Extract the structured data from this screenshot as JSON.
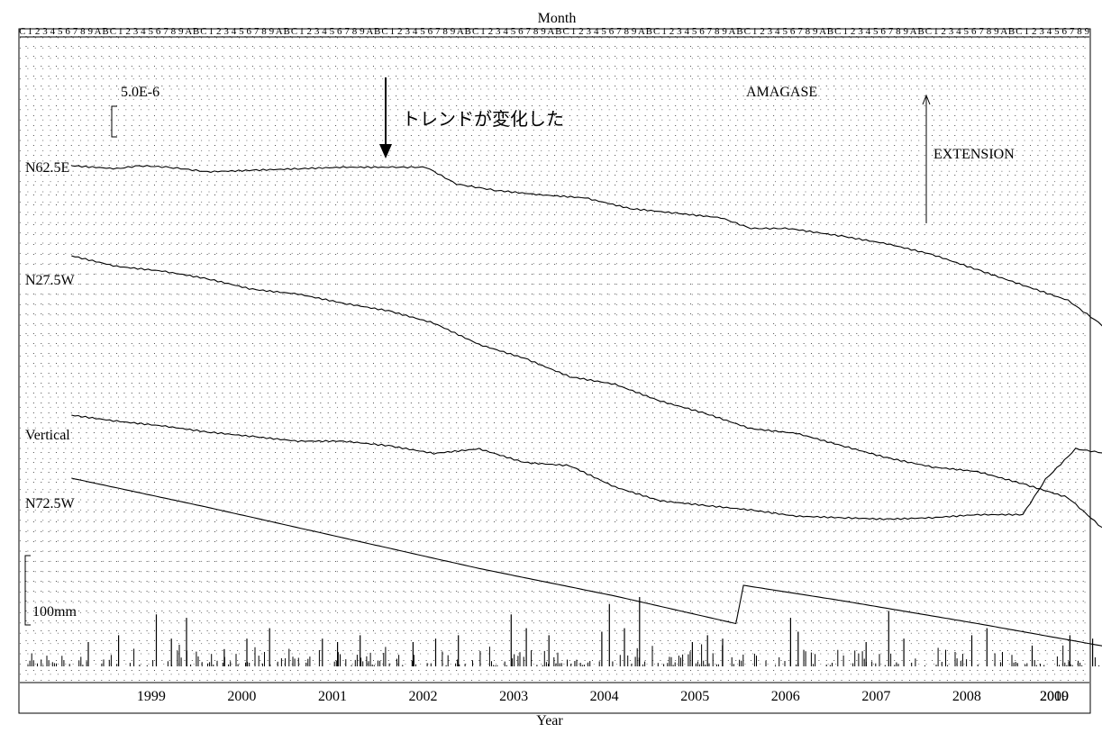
{
  "chart_data": {
    "type": "line",
    "station": "AMAGASE",
    "top_axis_label": "Month",
    "bottom_axis_label": "Year",
    "month_tick_labels": [
      "1",
      "2",
      "3",
      "4",
      "5",
      "6",
      "7",
      "8",
      "9",
      "A",
      "B",
      "C"
    ],
    "year_labels": [
      "1999",
      "2000",
      "2001",
      "2002",
      "2003",
      "2004",
      "2005",
      "2006",
      "2007",
      "2008",
      "2009",
      "2010"
    ],
    "strain_scale_label": "5.0E-6",
    "strain_scale_value": 5e-06,
    "rain_scale_label": "100mm",
    "rain_scale_value_mm": 100,
    "extension_label": "EXTENSION",
    "grid": true,
    "annotation": {
      "text": "トレンドが変化した",
      "date": "2002-06"
    },
    "x_range": [
      "1998-07",
      "2009-12"
    ],
    "series": [
      {
        "name": "N62.5E",
        "points": [
          [
            "1998-07",
            0.0
          ],
          [
            "1999-01",
            -0.1
          ],
          [
            "1999-04",
            0.0
          ],
          [
            "1999-08",
            -0.05
          ],
          [
            "2000-01",
            -0.2
          ],
          [
            "2000-07",
            -0.15
          ],
          [
            "2001-01",
            -0.1
          ],
          [
            "2001-07",
            -0.05
          ],
          [
            "2002-01",
            -0.05
          ],
          [
            "2002-06",
            -0.05
          ],
          [
            "2002-10",
            -0.6
          ],
          [
            "2003-03",
            -0.8
          ],
          [
            "2003-09",
            -0.95
          ],
          [
            "2004-03",
            -1.05
          ],
          [
            "2004-09",
            -1.4
          ],
          [
            "2005-03",
            -1.55
          ],
          [
            "2005-09",
            -1.7
          ],
          [
            "2006-01",
            -2.05
          ],
          [
            "2006-06",
            -2.05
          ],
          [
            "2007-01",
            -2.3
          ],
          [
            "2007-07",
            -2.55
          ],
          [
            "2008-01",
            -2.9
          ],
          [
            "2008-07",
            -3.4
          ],
          [
            "2009-01",
            -3.9
          ],
          [
            "2009-07",
            -4.4
          ],
          [
            "2009-12",
            -5.3
          ]
        ]
      },
      {
        "name": "N27.5W",
        "points": [
          [
            "1998-07",
            0.0
          ],
          [
            "1999-01",
            -0.35
          ],
          [
            "1999-07",
            -0.5
          ],
          [
            "2000-01",
            -0.75
          ],
          [
            "2000-07",
            -1.1
          ],
          [
            "2001-01",
            -1.25
          ],
          [
            "2001-07",
            -1.55
          ],
          [
            "2002-01",
            -1.8
          ],
          [
            "2002-07",
            -2.2
          ],
          [
            "2003-01",
            -2.9
          ],
          [
            "2003-07",
            -3.35
          ],
          [
            "2004-01",
            -3.95
          ],
          [
            "2004-07",
            -4.2
          ],
          [
            "2005-01",
            -4.75
          ],
          [
            "2005-07",
            -5.15
          ],
          [
            "2006-01",
            -5.65
          ],
          [
            "2006-07",
            -5.8
          ],
          [
            "2007-01",
            -6.2
          ],
          [
            "2007-07",
            -6.6
          ],
          [
            "2008-01",
            -6.9
          ],
          [
            "2008-07",
            -7.05
          ],
          [
            "2009-01",
            -7.45
          ],
          [
            "2009-07",
            -7.9
          ],
          [
            "2009-12",
            -9.0
          ]
        ]
      },
      {
        "name": "Vertical",
        "points": [
          [
            "1998-07",
            0.0
          ],
          [
            "1999-01",
            -0.2
          ],
          [
            "1999-07",
            -0.35
          ],
          [
            "2000-01",
            -0.55
          ],
          [
            "2000-07",
            -0.7
          ],
          [
            "2001-01",
            -0.85
          ],
          [
            "2001-07",
            -0.85
          ],
          [
            "2002-01",
            -1.0
          ],
          [
            "2002-07",
            -1.25
          ],
          [
            "2003-01",
            -1.1
          ],
          [
            "2003-07",
            -1.55
          ],
          [
            "2004-01",
            -1.65
          ],
          [
            "2004-07",
            -2.35
          ],
          [
            "2005-01",
            -2.8
          ],
          [
            "2005-07",
            -2.95
          ],
          [
            "2006-01",
            -3.1
          ],
          [
            "2006-07",
            -3.3
          ],
          [
            "2007-01",
            -3.35
          ],
          [
            "2007-07",
            -3.4
          ],
          [
            "2008-01",
            -3.35
          ],
          [
            "2008-07",
            -3.25
          ],
          [
            "2009-01",
            -3.25
          ],
          [
            "2009-04",
            -2.1
          ],
          [
            "2009-08",
            -1.1
          ],
          [
            "2009-12",
            -1.25
          ]
        ]
      },
      {
        "name": "N72.5W",
        "points": [
          [
            "1998-07",
            0.0
          ],
          [
            "2000-01",
            -0.95
          ],
          [
            "2001-07",
            -1.95
          ],
          [
            "2003-01",
            -2.95
          ],
          [
            "2004-07",
            -3.85
          ],
          [
            "2005-11",
            -4.75
          ],
          [
            "2005-12",
            -3.5
          ],
          [
            "2007-01",
            -4.0
          ],
          [
            "2008-07",
            -4.75
          ],
          [
            "2009-12",
            -5.5
          ]
        ]
      }
    ],
    "rain_series": {
      "name": "precipitation",
      "peaks": [
        [
          "1998-09",
          35
        ],
        [
          "1999-01",
          45
        ],
        [
          "1999-06",
          75
        ],
        [
          "1999-08",
          40
        ],
        [
          "1999-10",
          70
        ],
        [
          "2000-03",
          25
        ],
        [
          "2000-06",
          40
        ],
        [
          "2000-09",
          55
        ],
        [
          "2001-04",
          40
        ],
        [
          "2001-06",
          35
        ],
        [
          "2001-09",
          45
        ],
        [
          "2002-04",
          35
        ],
        [
          "2002-07",
          40
        ],
        [
          "2002-10",
          45
        ],
        [
          "2003-05",
          75
        ],
        [
          "2003-07",
          55
        ],
        [
          "2003-10",
          45
        ],
        [
          "2004-05",
          50
        ],
        [
          "2004-06",
          90
        ],
        [
          "2004-08",
          55
        ],
        [
          "2004-10",
          100
        ],
        [
          "2005-05",
          35
        ],
        [
          "2005-07",
          45
        ],
        [
          "2005-09",
          40
        ],
        [
          "2006-06",
          70
        ],
        [
          "2006-07",
          50
        ],
        [
          "2007-04",
          35
        ],
        [
          "2007-07",
          80
        ],
        [
          "2007-09",
          40
        ],
        [
          "2008-06",
          45
        ],
        [
          "2008-08",
          55
        ],
        [
          "2009-02",
          30
        ],
        [
          "2009-07",
          45
        ],
        [
          "2009-10",
          40
        ]
      ]
    }
  }
}
